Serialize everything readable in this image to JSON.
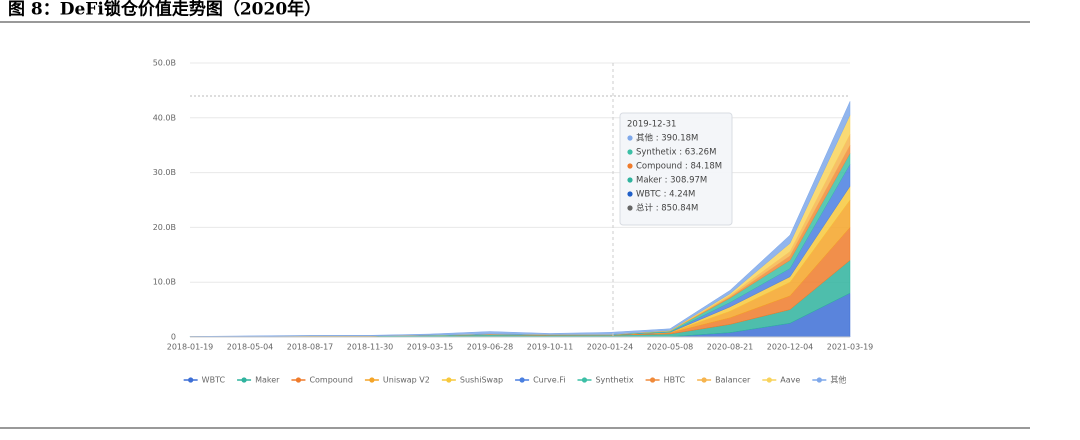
{
  "chart_data": {
    "type": "stacked_area",
    "title": "图 8：DeFi锁仓价值走势图（2020年）",
    "categories": [
      "2018-01-19",
      "2018-05-04",
      "2018-08-17",
      "2018-11-30",
      "2019-03-15",
      "2019-06-28",
      "2019-10-11",
      "2020-01-24",
      "2020-05-08",
      "2020-08-21",
      "2020-12-04",
      "2021-03-19"
    ],
    "series": [
      {
        "name": "WBTC",
        "color": "#3d6fd6",
        "values": [
          0,
          0,
          0,
          0,
          0,
          0,
          0,
          0.01,
          0.05,
          0.8,
          2.5,
          8
        ]
      },
      {
        "name": "Maker",
        "color": "#2fb39e",
        "values": [
          0.05,
          0.1,
          0.2,
          0.2,
          0.3,
          0.4,
          0.3,
          0.31,
          0.5,
          1.5,
          2.5,
          6
        ]
      },
      {
        "name": "Compound",
        "color": "#ef7b2b",
        "values": [
          0,
          0,
          0,
          0.01,
          0.02,
          0.1,
          0.1,
          0.08,
          0.2,
          1.2,
          2.5,
          6
        ]
      },
      {
        "name": "Uniswap V2",
        "color": "#f4a428",
        "values": [
          0,
          0,
          0,
          0,
          0,
          0,
          0,
          0,
          0.1,
          1.2,
          2.5,
          5
        ]
      },
      {
        "name": "SushiSwap",
        "color": "#f7c83c",
        "values": [
          0,
          0,
          0,
          0,
          0,
          0,
          0,
          0,
          0,
          0.8,
          1,
          2.5
        ]
      },
      {
        "name": "Curve.Fi",
        "color": "#4a7fe0",
        "values": [
          0,
          0,
          0,
          0,
          0,
          0,
          0,
          0,
          0.05,
          0.8,
          1.5,
          4
        ]
      },
      {
        "name": "Synthetix",
        "color": "#3cbfa6",
        "values": [
          0,
          0,
          0,
          0,
          0.02,
          0.05,
          0.05,
          0.06,
          0.2,
          0.8,
          1.5,
          2
        ]
      },
      {
        "name": "HBTC",
        "color": "#f08a3a",
        "values": [
          0,
          0,
          0,
          0,
          0,
          0,
          0,
          0,
          0,
          0.2,
          0.8,
          1.5
        ]
      },
      {
        "name": "Balancer",
        "color": "#f6b44e",
        "values": [
          0,
          0,
          0,
          0,
          0,
          0,
          0,
          0,
          0.05,
          0.3,
          0.8,
          2
        ]
      },
      {
        "name": "Aave",
        "color": "#f8d35c",
        "values": [
          0,
          0,
          0,
          0,
          0,
          0,
          0,
          0,
          0.05,
          0.3,
          1.5,
          3.5
        ]
      },
      {
        "name": "其他",
        "color": "#7ea8ea",
        "values": [
          0.05,
          0.1,
          0.1,
          0.1,
          0.2,
          0.45,
          0.2,
          0.39,
          0.3,
          0.6,
          1.5,
          2.5
        ]
      }
    ],
    "ylim": [
      0,
      50
    ],
    "yticks": [
      0,
      {
        "value": 10,
        "label": "10.0B"
      },
      {
        "value": 20,
        "label": "20.0B"
      },
      {
        "value": 30,
        "label": "30.0B"
      },
      {
        "value": 40,
        "label": "40.0B"
      },
      {
        "value": 50,
        "label": "50.0B"
      }
    ],
    "grid": true,
    "tooltip": {
      "title": "2019-12-31",
      "items": [
        {
          "label": "其他 : 390.18M",
          "color": "#7ea8ea"
        },
        {
          "label": "Synthetix : 63.26M",
          "color": "#3cbfa6"
        },
        {
          "label": "Compound : 84.18M",
          "color": "#ef7b2b"
        },
        {
          "label": "Maker : 308.97M",
          "color": "#2fb39e"
        },
        {
          "label": "WBTC : 4.24M",
          "color": "#1f5fc8"
        },
        {
          "label": "总计 : 850.84M",
          "color": "#666666"
        }
      ]
    }
  }
}
